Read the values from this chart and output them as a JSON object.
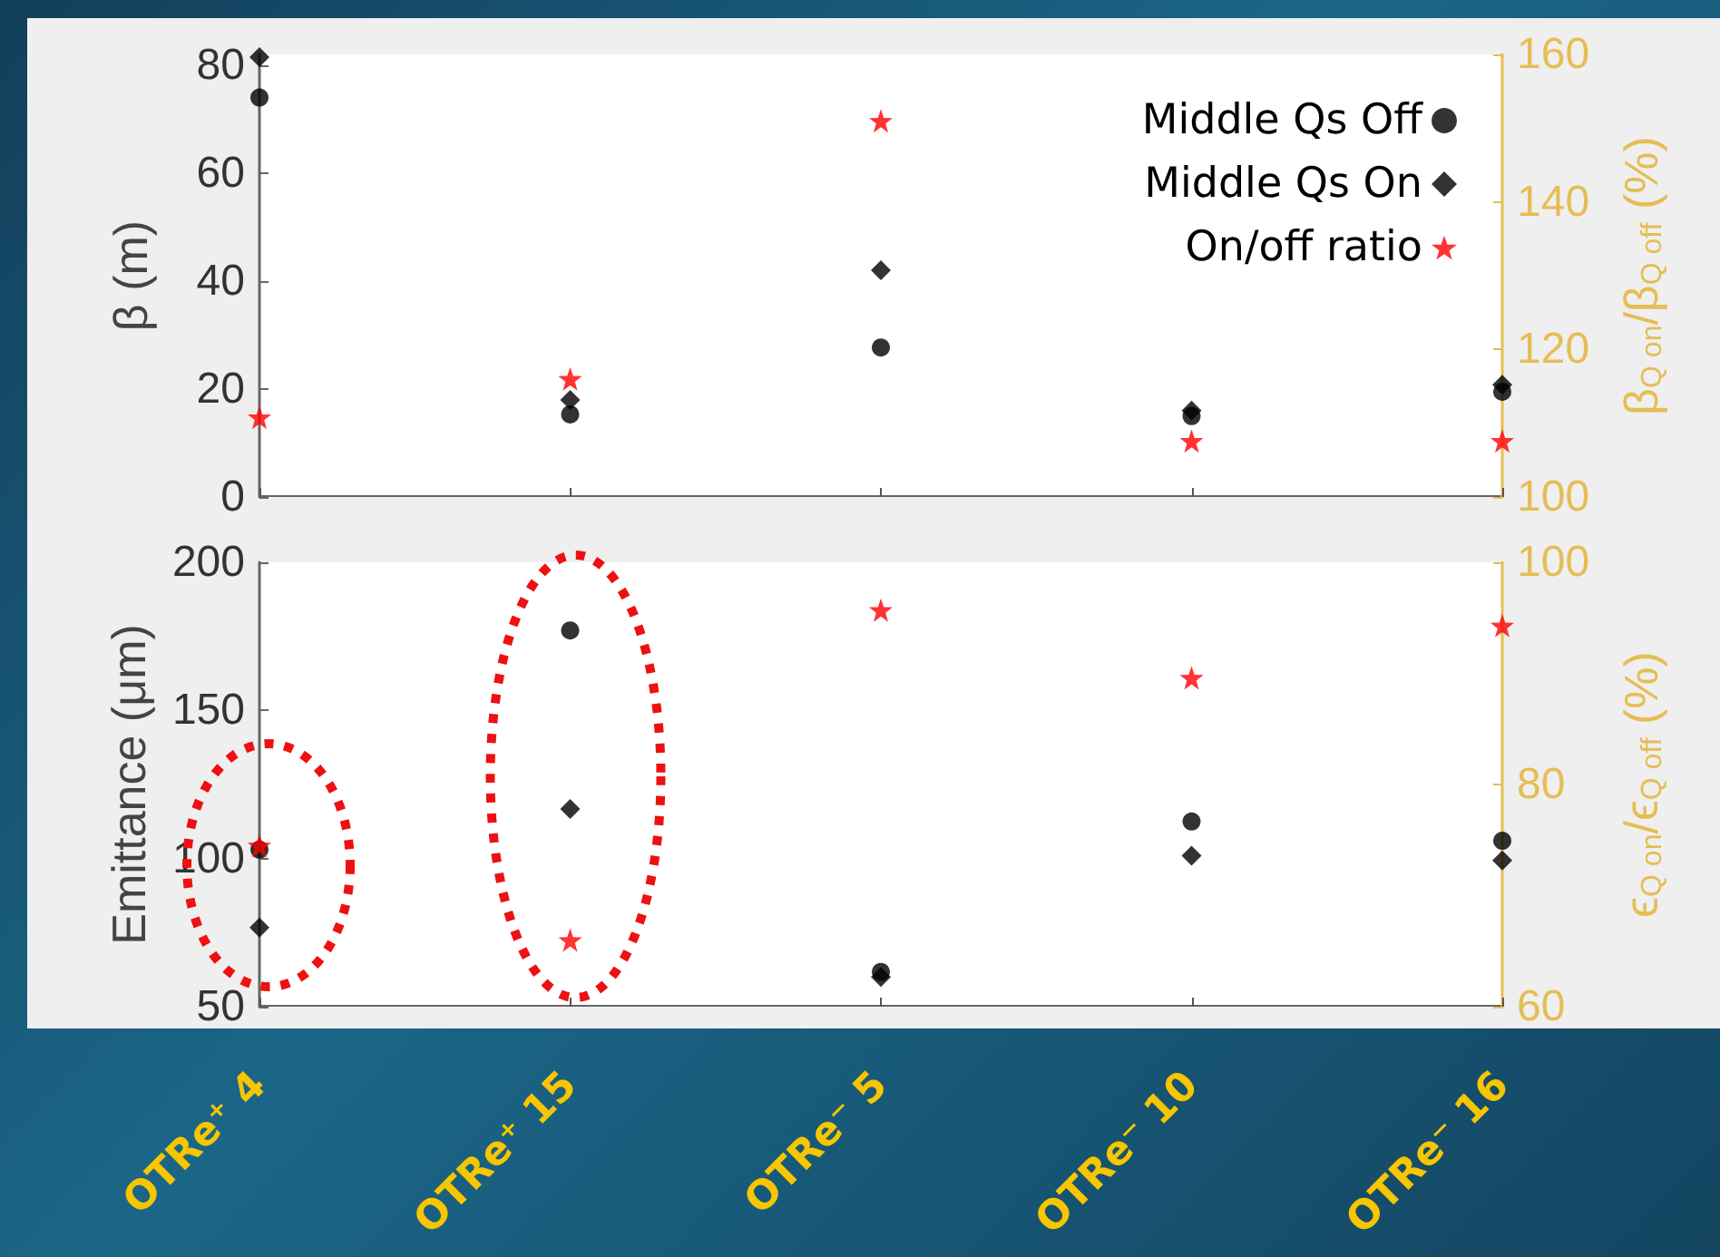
{
  "chart_data": [
    {
      "type": "scatter",
      "ylabel": "β (m)",
      "y2label": "β$_{Q on}$/β$_{Q off}$ (%)",
      "categories": [
        "OTRe⁺ 4",
        "OTRe⁺ 15",
        "OTRe⁻ 5",
        "OTRe⁻ 10",
        "OTRe⁻ 16"
      ],
      "tick_labels": "y",
      "grid": false,
      "legend": "top right",
      "ylim": [
        0,
        82
      ],
      "yticks": [
        0,
        20,
        40,
        60,
        80
      ],
      "y2lim": [
        100,
        160
      ],
      "y2ticks": [
        100,
        120,
        140,
        160
      ],
      "series": [
        {
          "name": "Middle Qs Off",
          "color": "#000000",
          "marker": "circle",
          "values": [
            74,
            15.3,
            27.7,
            15,
            19.5
          ]
        },
        {
          "name": "Middle Qs On",
          "color": "#000000",
          "marker": "diamond",
          "values": [
            81.5,
            18,
            42,
            16,
            20.8
          ]
        },
        {
          "name": "On/off ratio",
          "color": "#ff0000",
          "marker": "star",
          "axis": "y2",
          "values": [
            110.8,
            116,
            151,
            107.6,
            107.6
          ]
        }
      ]
    },
    {
      "type": "scatter",
      "ylabel": "Emittance (μm)",
      "y2label": "ϵ$_{Q on}$/ϵ$_{Q off}$ (%)",
      "categories": [
        "OTRe⁺ 4",
        "OTRe⁺ 15",
        "OTRe⁻ 5",
        "OTRe⁻ 10",
        "OTRe⁻ 16"
      ],
      "grid": false,
      "ylim": [
        50,
        200
      ],
      "yticks": [
        50,
        100,
        150,
        200
      ],
      "y2lim": [
        60,
        100
      ],
      "y2ticks": [
        60,
        80,
        100
      ],
      "series": [
        {
          "color": "#000000",
          "marker": "circle",
          "values": [
            103,
            177,
            61.7,
            112.5,
            106
          ]
        },
        {
          "color": "#000000",
          "marker": "diamond",
          "values": [
            76.7,
            116.7,
            60,
            101,
            99.4
          ]
        },
        {
          "color": "#ff0000",
          "marker": "star",
          "axis": "y2",
          "values": [
            74.5,
            66,
            95.7,
            89.6,
            94.3
          ]
        }
      ]
    }
  ]
}
